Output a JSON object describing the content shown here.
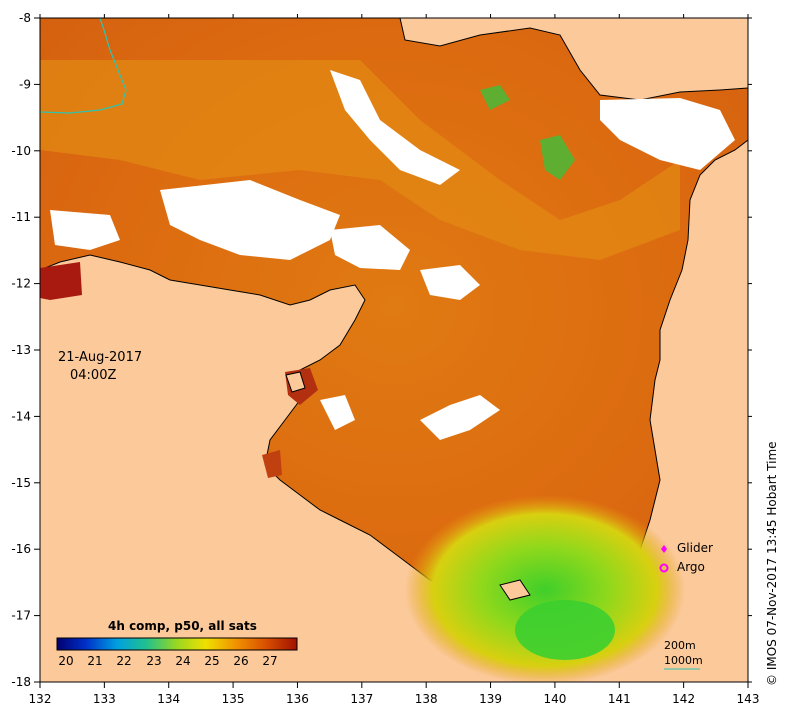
{
  "map": {
    "x_ticks": [
      "132",
      "133",
      "134",
      "135",
      "136",
      "137",
      "138",
      "139",
      "140",
      "141",
      "142",
      "143"
    ],
    "y_ticks": [
      "-8",
      "-9",
      "-10",
      "-11",
      "-12",
      "-13",
      "-14",
      "-15",
      "-16",
      "-17",
      "-18"
    ],
    "land_color": "#fbc99a",
    "no_data_color": "#ffffff",
    "coast_color": "#000000",
    "bathy_contour_color": "#2ec4b0"
  },
  "annotation": {
    "date": "21-Aug-2017",
    "time": "04:00Z"
  },
  "legend": {
    "title": "4h comp, p50, all sats",
    "labels": [
      "20",
      "21",
      "22",
      "23",
      "24",
      "25",
      "26",
      "27"
    ],
    "colors": [
      "#00006e",
      "#0030c8",
      "#00a0e0",
      "#20c090",
      "#9ad820",
      "#f0e000",
      "#f09000",
      "#d85000",
      "#a01000"
    ]
  },
  "markers": {
    "glider": "Glider",
    "argo": "Argo",
    "marker_color": "#ff00ff"
  },
  "scale": {
    "label_200": "200m",
    "label_1000": "1000m"
  },
  "credit": "© IMOS 07-Nov-2017 13:45 Hobart Time"
}
